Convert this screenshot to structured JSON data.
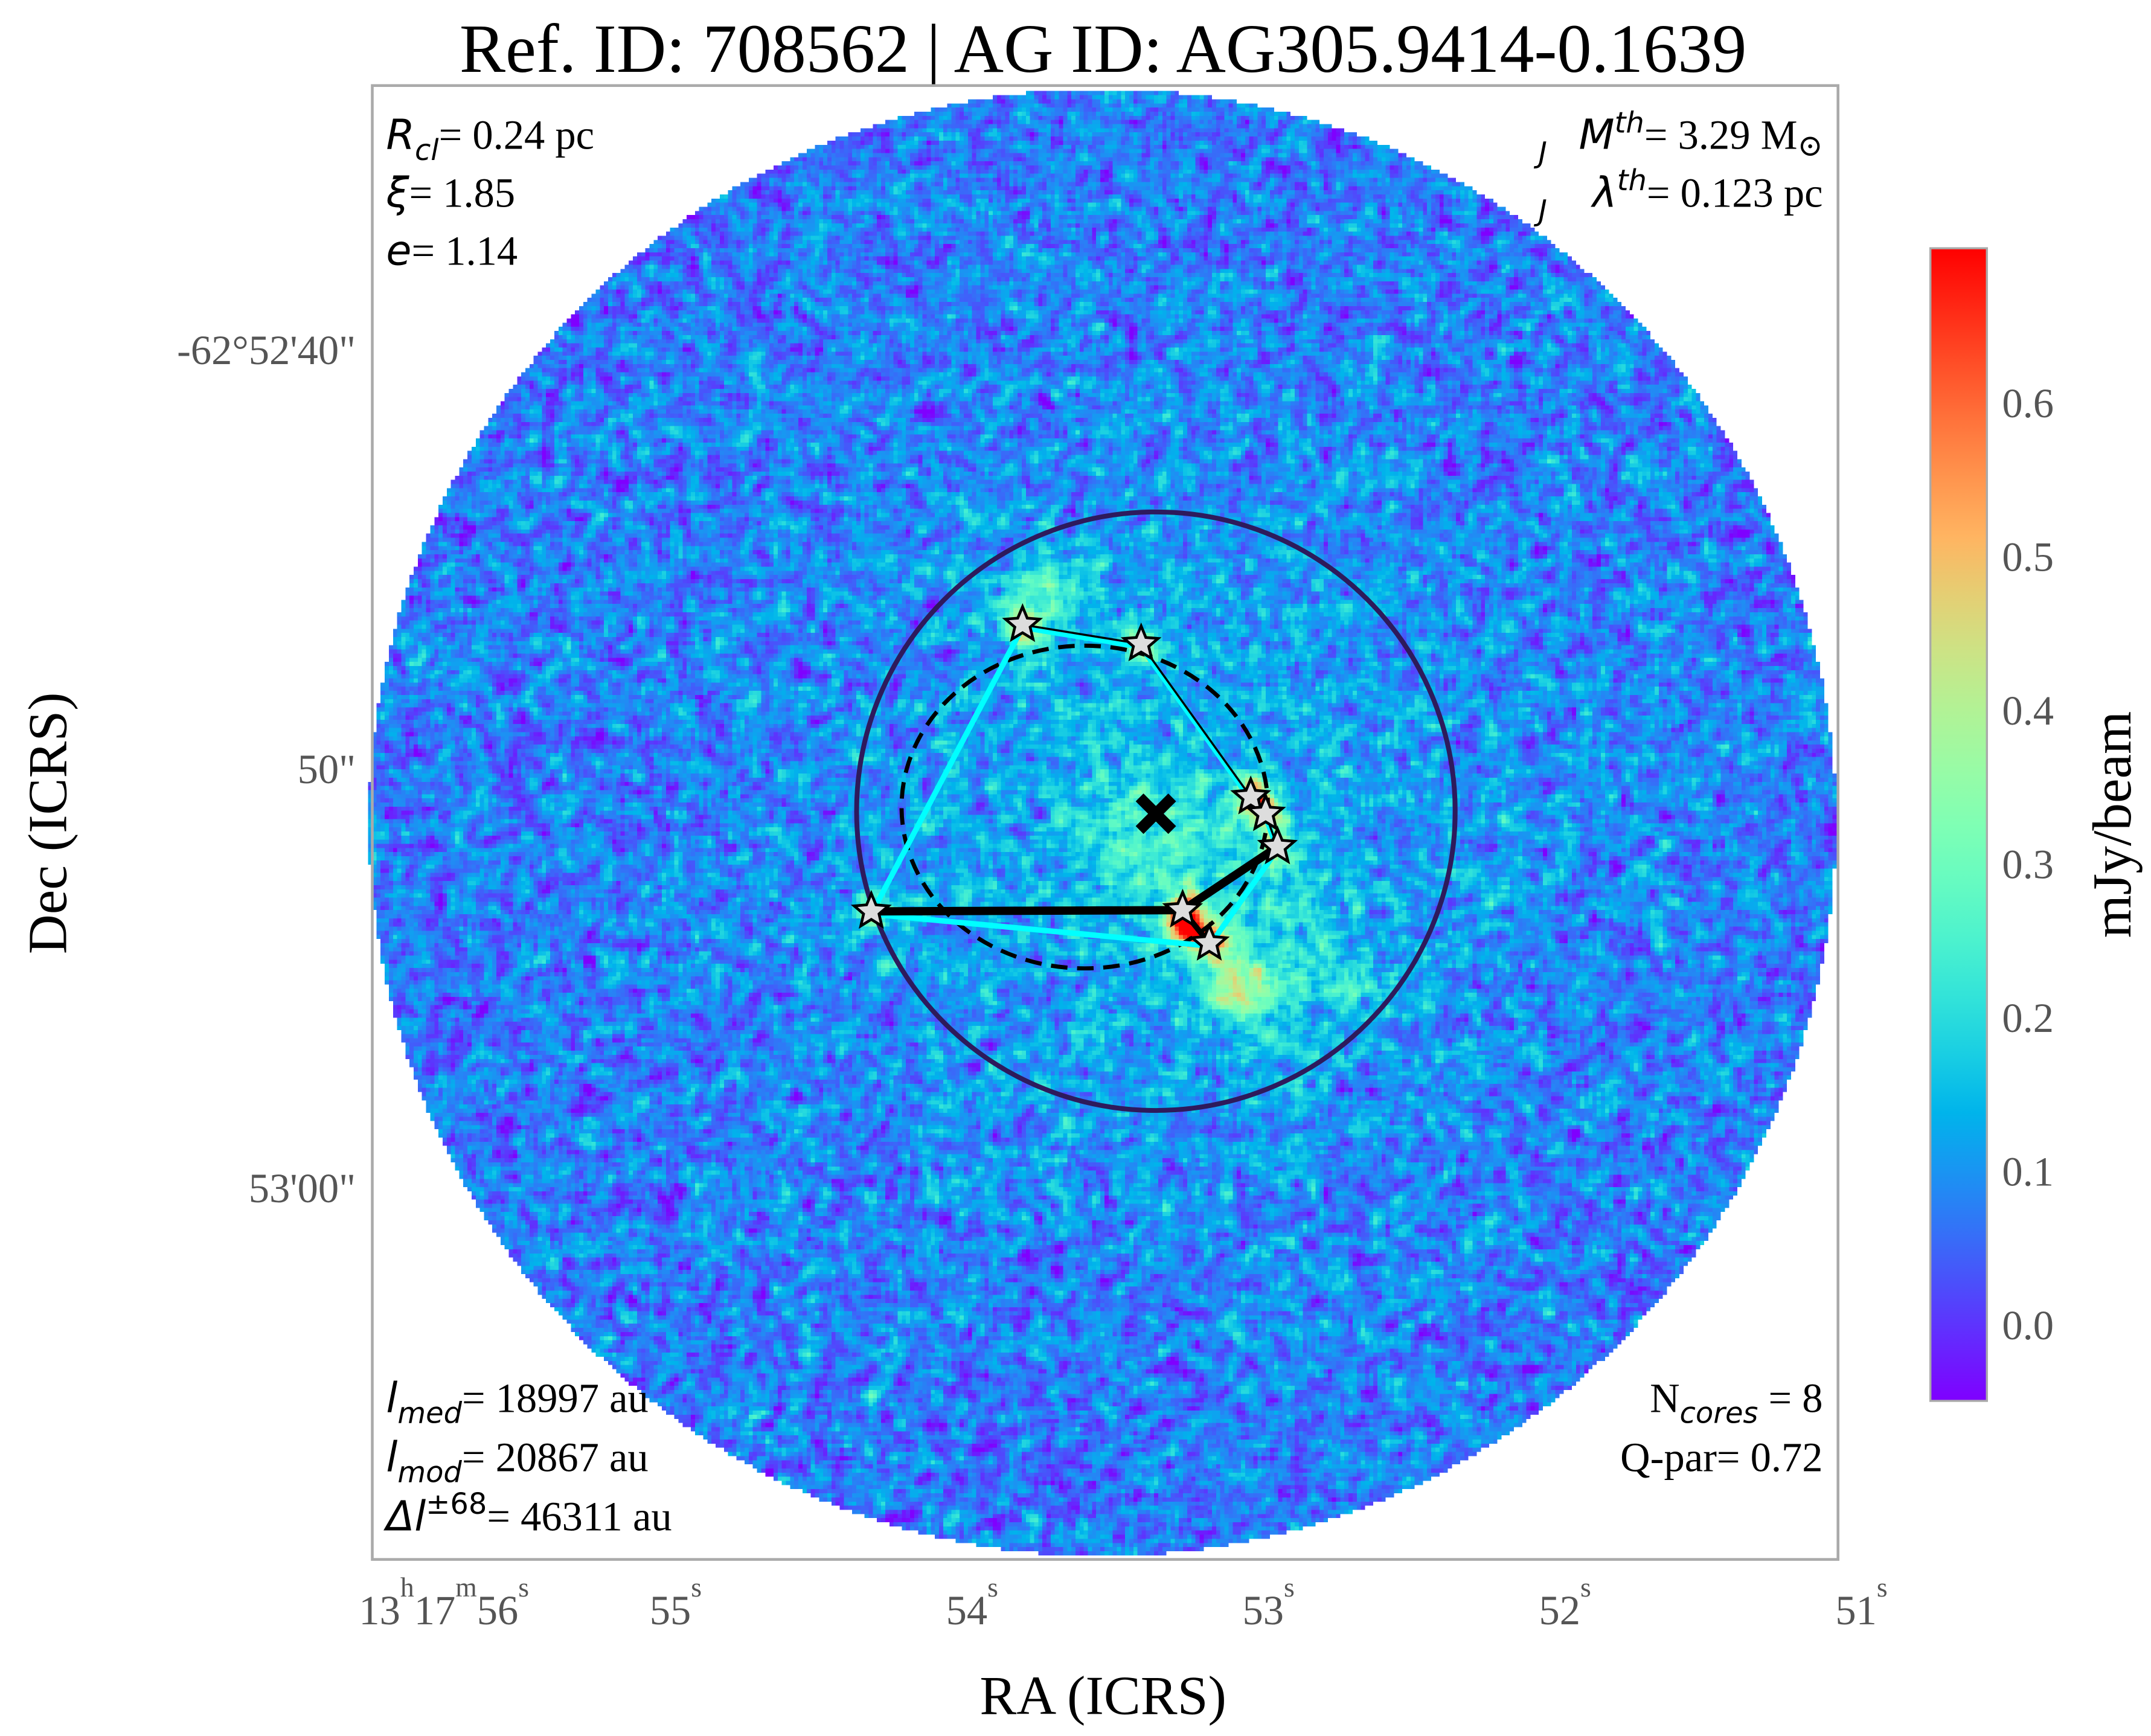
{
  "chart_data": {
    "type": "heatmap",
    "title": "Ref. ID: 708562 | AG ID: AG305.9414-0.1639",
    "xlabel": "RA (ICRS)",
    "ylabel": "Dec (ICRS)",
    "colorbar": {
      "label": "mJy/beam",
      "colormap": "rainbow",
      "range": [
        -0.05,
        0.7
      ],
      "ticks": [
        "0.0",
        "0.1",
        "0.2",
        "0.3",
        "0.4",
        "0.5",
        "0.6"
      ],
      "tick_values": [
        0.0,
        0.1,
        0.2,
        0.3,
        0.4,
        0.5,
        0.6
      ]
    },
    "x_ticks": [
      {
        "value": 56,
        "main": "13",
        "h": "h",
        "min": "17",
        "m": "m",
        "sec": "56",
        "s": "s"
      },
      {
        "value": 55,
        "sec": "55",
        "s": "s"
      },
      {
        "value": 54,
        "sec": "54",
        "s": "s"
      },
      {
        "value": 53,
        "sec": "53",
        "s": "s"
      },
      {
        "value": 52,
        "sec": "52",
        "s": "s"
      },
      {
        "value": 51,
        "sec": "51",
        "s": "s"
      }
    ],
    "y_ticks": [
      {
        "value": 40,
        "label": "-62°52'40\""
      },
      {
        "value": 50,
        "label": "50\""
      },
      {
        "value": 60,
        "label": "53'00\""
      }
    ],
    "field": {
      "ra_s": 53.56,
      "dec_arcsec": 51.3,
      "radius_arcsec": 17.5
    },
    "cores": [
      {
        "ra_s": 53.83,
        "dec_arcsec": 46.58
      },
      {
        "ra_s": 53.43,
        "dec_arcsec": 47.04
      },
      {
        "ra_s": 53.06,
        "dec_arcsec": 50.69
      },
      {
        "ra_s": 53.01,
        "dec_arcsec": 51.09
      },
      {
        "ra_s": 52.97,
        "dec_arcsec": 51.88
      },
      {
        "ra_s": 53.29,
        "dec_arcsec": 53.39
      },
      {
        "ra_s": 53.2,
        "dec_arcsec": 54.18
      },
      {
        "ra_s": 54.34,
        "dec_arcsec": 53.42
      }
    ],
    "center_marker": {
      "ra_s": 53.38,
      "dec_arcsec": 51.09
    },
    "clump_circle": {
      "ra_s": 53.38,
      "dec_arcsec": 51.03,
      "radius_arcsec": 7.14,
      "color": "#2e1a5c"
    },
    "core_ellipse": {
      "ra_s": 53.62,
      "dec_arcsec": 50.93,
      "rx_arcsec": 4.37,
      "ry_arcsec": 3.85,
      "style": "dashed"
    },
    "hull_edges": [
      [
        7,
        0
      ],
      [
        0,
        1
      ],
      [
        1,
        2
      ],
      [
        2,
        3
      ],
      [
        3,
        4
      ],
      [
        4,
        6
      ],
      [
        6,
        7
      ]
    ],
    "hull_color": "#00ffff",
    "mst_edges": [
      [
        0,
        1
      ],
      [
        1,
        2
      ],
      [
        2,
        3
      ],
      [
        3,
        4
      ],
      [
        4,
        5
      ],
      [
        5,
        7
      ],
      [
        5,
        6
      ]
    ],
    "mst_color": "#000000",
    "annotations": {
      "top_left": [
        {
          "sym": "R",
          "sub": "cl",
          "val": "= 0.24 pc"
        },
        {
          "sym": "ξ",
          "val": "= 1.85"
        },
        {
          "sym": "e",
          "val": "= 1.14"
        }
      ],
      "top_right": [
        {
          "sym": "M",
          "sup": "th",
          "sub": "J",
          "val": "= 3.29 M",
          "unit": "⊙"
        },
        {
          "sym": "λ",
          "sup": "th",
          "sub": "J",
          "val": "= 0.123 pc"
        }
      ],
      "bottom_left": [
        {
          "sym": "l",
          "sub": "med",
          "val": "= 18997 au"
        },
        {
          "sym": "l",
          "sub": "mod",
          "val": "= 20867 au"
        },
        {
          "sym": "Δl",
          "sup": "±68",
          "val": "= 46311 au"
        }
      ],
      "bottom_right": [
        {
          "sym": "N",
          "sub": "cores",
          "val": " = 8"
        },
        {
          "sym": "Q-par",
          "val": "= 0.72"
        }
      ]
    }
  }
}
